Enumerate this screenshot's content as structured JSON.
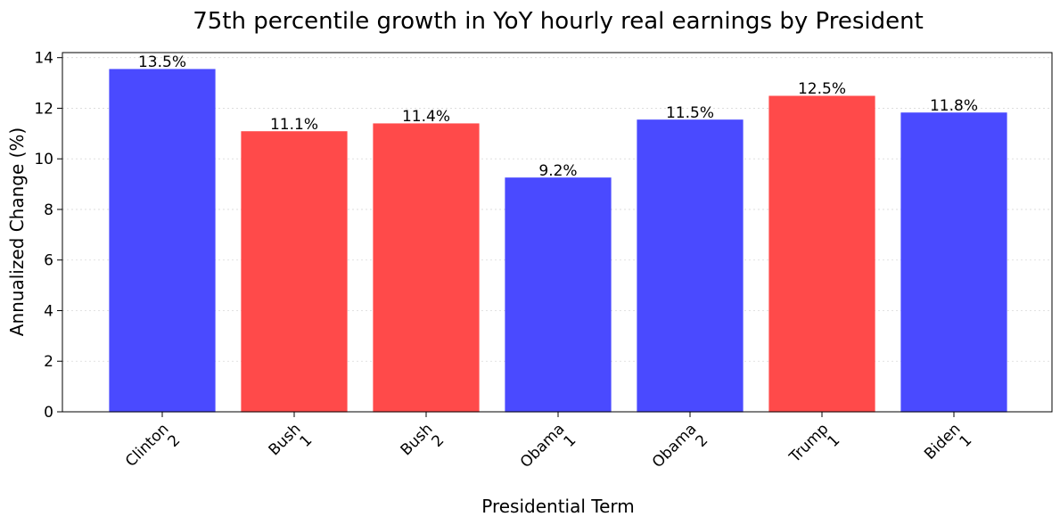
{
  "chart_data": {
    "type": "bar",
    "title": "75th percentile growth in YoY hourly real earnings by President",
    "xlabel": "Presidential Term",
    "ylabel": "Annualized Change (%)",
    "categories": [
      {
        "name": "Clinton",
        "term": "2"
      },
      {
        "name": "Bush",
        "term": "1"
      },
      {
        "name": "Bush",
        "term": "2"
      },
      {
        "name": "Obama",
        "term": "1"
      },
      {
        "name": "Obama",
        "term": "2"
      },
      {
        "name": "Trump",
        "term": "1"
      },
      {
        "name": "Biden",
        "term": "1"
      }
    ],
    "values": [
      13.53,
      11.07,
      11.38,
      9.24,
      11.53,
      12.47,
      11.81
    ],
    "value_labels": [
      "13.5%",
      "11.1%",
      "11.4%",
      "9.2%",
      "11.5%",
      "12.5%",
      "11.8%"
    ],
    "party_colors": [
      "#4a4aff",
      "#ff4a4a",
      "#ff4a4a",
      "#4a4aff",
      "#4a4aff",
      "#ff4a4a",
      "#4a4aff"
    ],
    "ylim": [
      0,
      14.2
    ],
    "yticks": [
      0,
      2,
      4,
      6,
      8,
      10,
      12,
      14
    ],
    "grid": "horizontal dotted"
  }
}
